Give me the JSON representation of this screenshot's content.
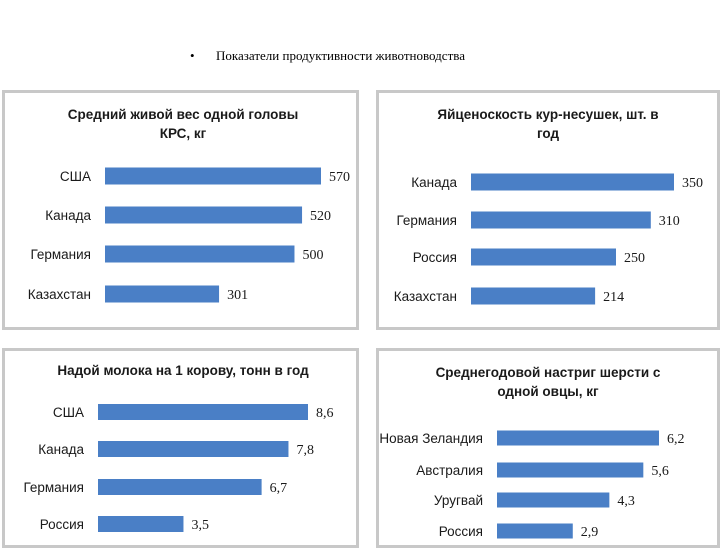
{
  "slide": {
    "bullet": "•",
    "title": "Показатели продуктивности животноводства"
  },
  "colors": {
    "bar": "#4a7fc6",
    "panel_border": "#c8c8c8"
  },
  "chart_data": [
    {
      "type": "bar",
      "orientation": "horizontal",
      "title_lines": [
        "Средний живой вес одной головы",
        "КРС, кг"
      ],
      "categories": [
        "США",
        "Канада",
        "Германия",
        "Казахстан"
      ],
      "values": [
        570,
        520,
        500,
        301
      ],
      "value_labels": [
        "570",
        "520",
        "500",
        "301"
      ],
      "xlim": [
        0,
        570
      ]
    },
    {
      "type": "bar",
      "orientation": "horizontal",
      "title_lines": [
        "Яйценоскость кур-несушек, шт. в",
        "год"
      ],
      "categories": [
        "Канада",
        "Германия",
        "Россия",
        "Казахстан"
      ],
      "values": [
        350,
        310,
        250,
        214
      ],
      "value_labels": [
        "350",
        "310",
        "250",
        "214"
      ],
      "xlim": [
        0,
        350
      ]
    },
    {
      "type": "bar",
      "orientation": "horizontal",
      "title_lines": [
        "Надой молока на 1 корову, тонн в год"
      ],
      "categories": [
        "США",
        "Канада",
        "Германия",
        "Россия"
      ],
      "values": [
        8.6,
        7.8,
        6.7,
        3.5
      ],
      "value_labels": [
        "8,6",
        "7,8",
        "6,7",
        "3,5"
      ],
      "xlim": [
        0,
        8.6
      ]
    },
    {
      "type": "bar",
      "orientation": "horizontal",
      "title_lines": [
        "Среднегодовой настриг шерсти с",
        "одной овцы, кг"
      ],
      "categories": [
        "Новая Зеландия",
        "Австралия",
        "Уругвай",
        "Россия"
      ],
      "values": [
        6.2,
        5.6,
        4.3,
        2.9
      ],
      "value_labels": [
        "6,2",
        "5,6",
        "4,3",
        "2,9"
      ],
      "xlim": [
        0,
        6.2
      ]
    }
  ]
}
